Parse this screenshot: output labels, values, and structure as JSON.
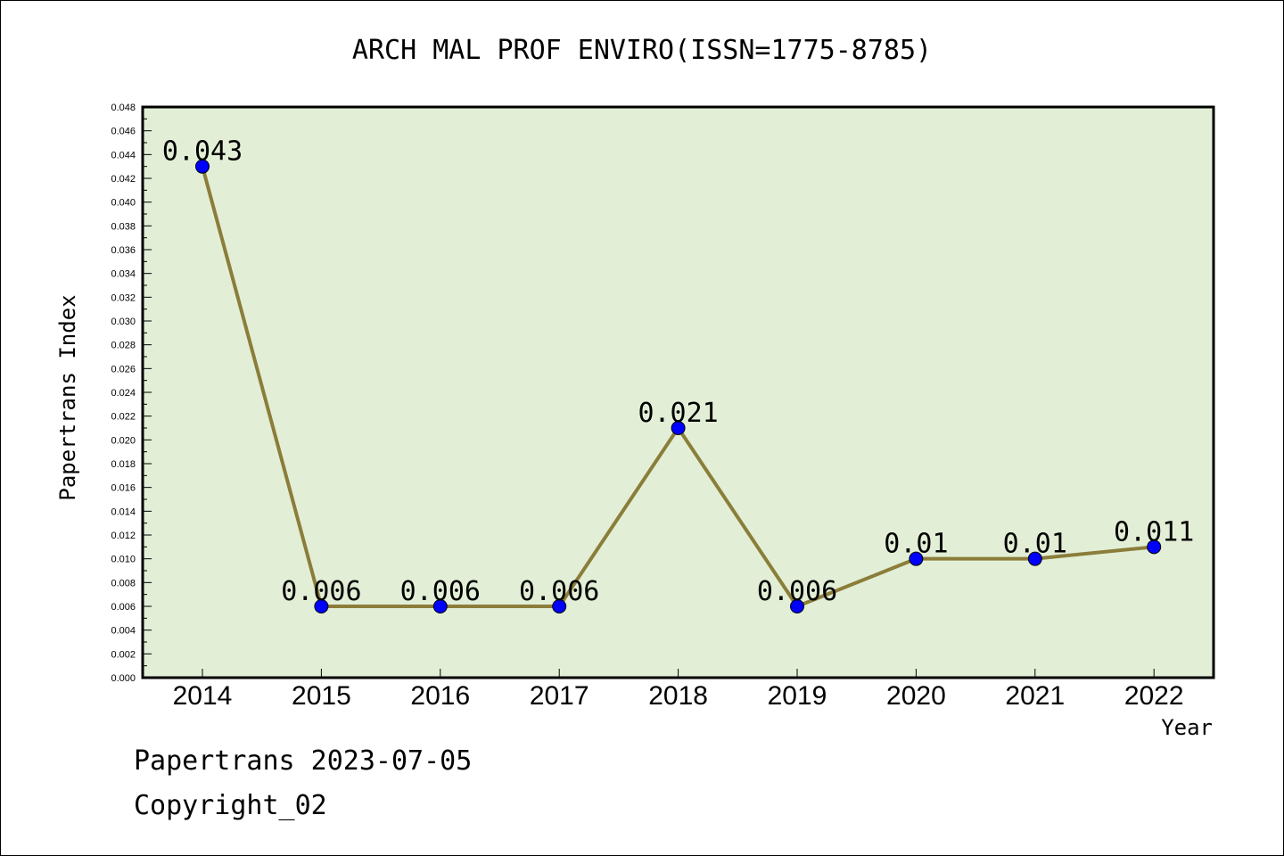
{
  "chart_data": {
    "type": "line",
    "title": "ARCH MAL PROF ENVIRO(ISSN=1775-8785)",
    "xlabel": "Year",
    "ylabel": "Papertrans Index",
    "ylim": [
      0,
      0.048
    ],
    "y_tick_step": 0.002,
    "categories": [
      "2014",
      "2015",
      "2016",
      "2017",
      "2018",
      "2019",
      "2020",
      "2021",
      "2022"
    ],
    "values": [
      0.043,
      0.006,
      0.006,
      0.006,
      0.021,
      0.006,
      0.01,
      0.01,
      0.011
    ],
    "data_labels": [
      "0.043",
      "0.006",
      "0.006",
      "0.006",
      "0.021",
      "0.006",
      "0.01",
      "0.01",
      "0.011"
    ],
    "grid": false,
    "colors": {
      "plot_background": "#e2efd6",
      "line": "#8b7d3a",
      "marker": "#0000ff"
    }
  },
  "footer": {
    "line1": "Papertrans 2023-07-05",
    "line2": "Copyright_02"
  }
}
